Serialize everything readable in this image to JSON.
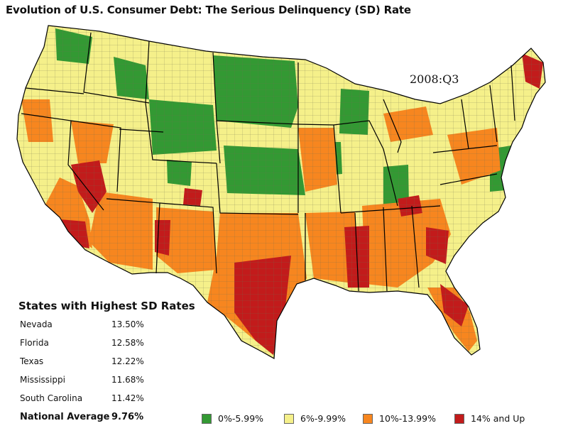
{
  "title": "Evolution of U.S. Consumer Debt: The Serious Delinquency (SD) Rate",
  "period": "2008:Q3",
  "ranking": {
    "title": "States with Highest SD Rates",
    "rows": [
      {
        "state": "Nevada",
        "rate": "13.50%"
      },
      {
        "state": "Florida",
        "rate": "12.58%"
      },
      {
        "state": "Texas",
        "rate": "12.22%"
      },
      {
        "state": "Mississippi",
        "rate": "11.68%"
      },
      {
        "state": "South Carolina",
        "rate": "11.42%"
      }
    ],
    "national_label": "National Average",
    "national_rate": "9.76%"
  },
  "legend": [
    {
      "label": "0%-5.99%",
      "color": "#339933"
    },
    {
      "label": "6%-9.99%",
      "color": "#f5f08a"
    },
    {
      "label": "10%-13.99%",
      "color": "#f7861f"
    },
    {
      "label": "14% and Up",
      "color": "#c21b1b"
    }
  ],
  "colors": {
    "low": "#339933",
    "mid": "#f5f08a",
    "high": "#f7861f",
    "top": "#c21b1b",
    "borders": "#000000"
  }
}
